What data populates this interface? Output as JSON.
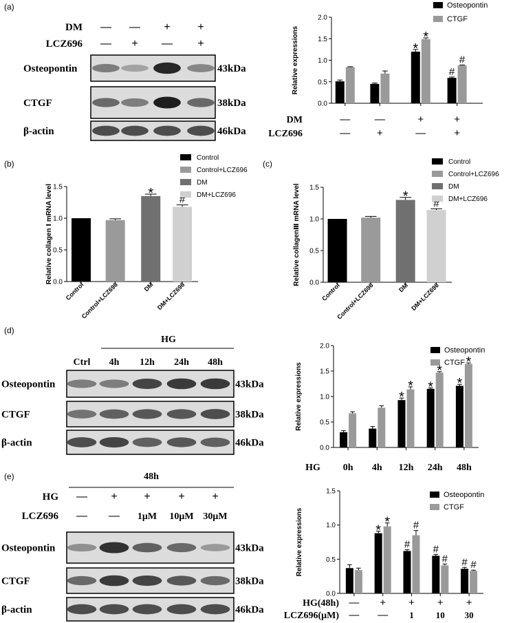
{
  "colors": {
    "black": "#000000",
    "gray": "#9a9a9a",
    "dark_gray": "#707070",
    "light_gray": "#d0d0d0"
  },
  "panel_labels": [
    "(a)",
    "(b)",
    "(c)",
    "(d)",
    "(e)"
  ],
  "blots": [
    {
      "id": "a",
      "rows": [
        {
          "label": "DM",
          "values": [
            "—",
            "—",
            "+",
            "+"
          ]
        },
        {
          "label": "LCZ696",
          "values": [
            "—",
            "+",
            "—",
            "+"
          ]
        }
      ],
      "bands": [
        {
          "label": "Osteopontin",
          "size": "43kDa",
          "intensity": [
            0.45,
            0.25,
            0.9,
            0.4
          ]
        },
        {
          "label": "CTGF",
          "size": "38kDa",
          "intensity": [
            0.55,
            0.45,
            0.95,
            0.55
          ]
        },
        {
          "label": "β-actin",
          "size": "46kDa",
          "intensity": [
            0.7,
            0.7,
            0.7,
            0.7
          ]
        }
      ]
    },
    {
      "id": "d",
      "group_label": "HG",
      "lanes": [
        "Ctrl",
        "4h",
        "12h",
        "24h",
        "48h"
      ],
      "bands": [
        {
          "label": "Osteopontin",
          "size": "43kDa",
          "intensity": [
            0.45,
            0.45,
            0.75,
            0.8,
            0.8
          ]
        },
        {
          "label": "CTGF",
          "size": "38kDa",
          "intensity": [
            0.5,
            0.6,
            0.65,
            0.65,
            0.7
          ]
        },
        {
          "label": "β-actin",
          "size": "46kDa",
          "intensity": [
            0.7,
            0.75,
            0.6,
            0.65,
            0.6
          ]
        }
      ]
    },
    {
      "id": "e",
      "group_label": "48h",
      "rows": [
        {
          "label": "HG",
          "values": [
            "—",
            "+",
            "+",
            "+",
            "+"
          ]
        },
        {
          "label": "LCZ696",
          "values": [
            "—",
            "—",
            "1μM",
            "10μM",
            "30μM"
          ]
        }
      ],
      "bands": [
        {
          "label": "Osteopontin",
          "size": "43kDa",
          "intensity": [
            0.35,
            0.85,
            0.6,
            0.55,
            0.3
          ]
        },
        {
          "label": "CTGF",
          "size": "38kDa",
          "intensity": [
            0.55,
            0.8,
            0.75,
            0.65,
            0.55
          ]
        },
        {
          "label": "β-actin",
          "size": "46kDa",
          "intensity": [
            0.7,
            0.7,
            0.7,
            0.7,
            0.7
          ]
        }
      ]
    }
  ],
  "chart_data": [
    {
      "id": "a",
      "type": "bar",
      "ylabel": "Relative expressions",
      "ylim": [
        0,
        2.0
      ],
      "yticks": [
        "0.0",
        "0.5",
        "1.0",
        "1.5",
        "2.0"
      ],
      "series": [
        {
          "name": "Osteopontin",
          "color": "#000000",
          "values": [
            0.51,
            0.45,
            1.2,
            0.59
          ],
          "errors": [
            0.03,
            0.02,
            0.05,
            0.02
          ],
          "marks": [
            "",
            "",
            "*",
            "#"
          ]
        },
        {
          "name": "CTGF",
          "color": "#9a9a9a",
          "values": [
            0.84,
            0.69,
            1.49,
            0.88
          ],
          "errors": [
            0.01,
            0.06,
            0.03,
            0.01
          ],
          "marks": [
            "",
            "",
            "*",
            "#"
          ]
        }
      ],
      "xrows": [
        {
          "label": "DM",
          "values": [
            "—",
            "—",
            "+",
            "+"
          ]
        },
        {
          "label": "LCZ696",
          "values": [
            "—",
            "+",
            "—",
            "+"
          ]
        }
      ],
      "legend": "top-right"
    },
    {
      "id": "b",
      "type": "bar",
      "ylabel": "Relative collagen Ⅰ  mRNA level",
      "ylim": [
        0,
        1.5
      ],
      "yticks": [
        "0.0",
        "0.5",
        "1.0",
        "1.5"
      ],
      "categories": [
        "Control",
        "Control+LCZ696",
        "DM",
        "DM+LCZ696"
      ],
      "values": [
        1.0,
        0.97,
        1.35,
        1.18
      ],
      "errors": [
        0.0,
        0.02,
        0.03,
        0.03
      ],
      "bar_colors": [
        "#000000",
        "#9a9a9a",
        "#707070",
        "#d0d0d0"
      ],
      "marks": [
        "",
        "",
        "*",
        "#"
      ],
      "legend": [
        "Control",
        "Control+LCZ696",
        "DM",
        "DM+LCZ696"
      ]
    },
    {
      "id": "c",
      "type": "bar",
      "ylabel": "Relative collagenⅢ mRNA level",
      "ylim": [
        0,
        1.5
      ],
      "yticks": [
        "0.0",
        "0.5",
        "1.0",
        "1.5"
      ],
      "categories": [
        "Control",
        "Control+LCZ696",
        "DM",
        "DM+LCZ696"
      ],
      "values": [
        1.0,
        1.02,
        1.3,
        1.14
      ],
      "errors": [
        0.0,
        0.02,
        0.04,
        0.02
      ],
      "bar_colors": [
        "#000000",
        "#9a9a9a",
        "#707070",
        "#d0d0d0"
      ],
      "marks": [
        "",
        "",
        "*",
        "#"
      ],
      "legend": [
        "Control",
        "Control+LCZ696",
        "DM",
        "DM+LCZ696"
      ]
    },
    {
      "id": "d",
      "type": "bar",
      "ylabel": "Relative expressions",
      "ylim": [
        0,
        2.0
      ],
      "yticks": [
        "0.0",
        "0.5",
        "1.0",
        "1.5",
        "2.0"
      ],
      "xtitle": "HG",
      "categories": [
        "0h",
        "4h",
        "12h",
        "24h",
        "48h"
      ],
      "series": [
        {
          "name": "Osteopontin",
          "color": "#000000",
          "values": [
            0.3,
            0.37,
            0.93,
            1.15,
            1.21
          ],
          "errors": [
            0.03,
            0.04,
            0.04,
            0.02,
            0.03
          ],
          "marks": [
            "",
            "",
            "*",
            "*",
            "*"
          ]
        },
        {
          "name": "CTGF",
          "color": "#9a9a9a",
          "values": [
            0.67,
            0.78,
            1.14,
            1.47,
            1.64
          ],
          "errors": [
            0.03,
            0.04,
            0.05,
            0.02,
            0.02
          ],
          "marks": [
            "",
            "",
            "*",
            "*",
            "*"
          ]
        }
      ],
      "legend": "top-right"
    },
    {
      "id": "e",
      "type": "bar",
      "ylabel": "Relative expressions",
      "ylim": [
        0,
        1.5
      ],
      "yticks": [
        "0.0",
        "0.5",
        "1.0",
        "1.5"
      ],
      "series": [
        {
          "name": "Osteopontin",
          "color": "#000000",
          "values": [
            0.37,
            0.88,
            0.62,
            0.55,
            0.36
          ],
          "errors": [
            0.05,
            0.03,
            0.02,
            0.02,
            0.02
          ],
          "marks": [
            "",
            "*",
            "#",
            "#",
            "#"
          ]
        },
        {
          "name": "CTGF",
          "color": "#9a9a9a",
          "values": [
            0.34,
            0.98,
            0.85,
            0.41,
            0.33
          ],
          "errors": [
            0.03,
            0.05,
            0.07,
            0.02,
            0.01
          ],
          "marks": [
            "",
            "*",
            "#",
            "#",
            "#"
          ]
        }
      ],
      "xrows": [
        {
          "label": "HG(48h)",
          "values": [
            "—",
            "+",
            "+",
            "+",
            "+"
          ]
        },
        {
          "label": "LCZ696(μM)",
          "values": [
            "—",
            "—",
            "1",
            "10",
            "30"
          ]
        }
      ],
      "legend": "top-right"
    }
  ]
}
